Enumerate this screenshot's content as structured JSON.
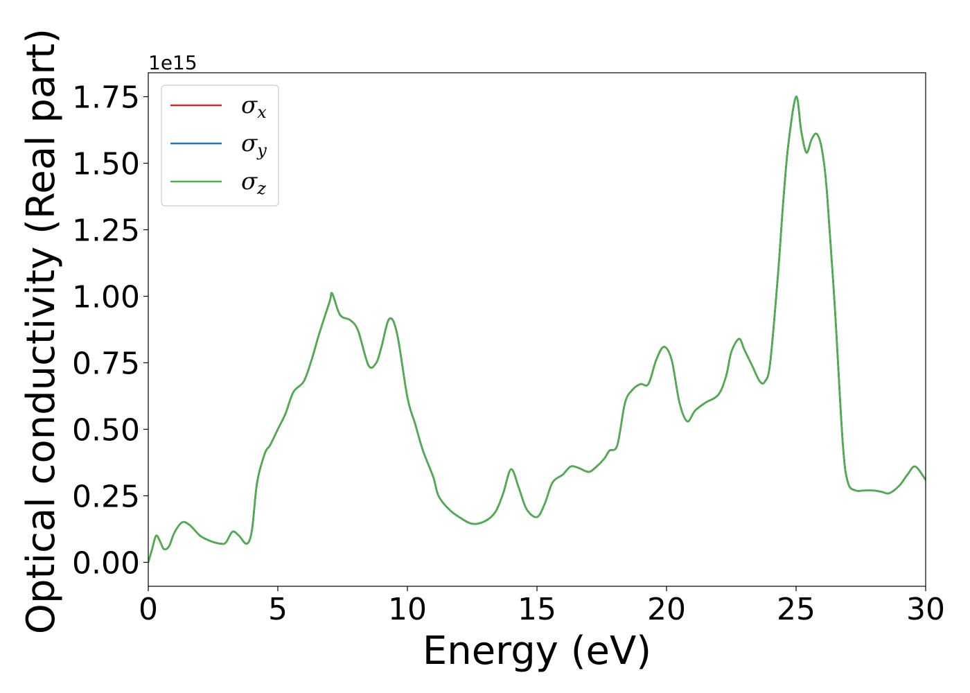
{
  "chart_data": {
    "type": "line",
    "xlabel": "Energy (eV)",
    "ylabel": "Optical conductivity (Real part)",
    "y_offset_text": "1e15",
    "xlim": [
      0,
      30
    ],
    "ylim": [
      -0.09,
      1.84
    ],
    "x_ticks": [
      0,
      5,
      10,
      15,
      20,
      25,
      30
    ],
    "x_tick_labels": [
      "0",
      "5",
      "10",
      "15",
      "20",
      "25",
      "30"
    ],
    "y_ticks": [
      0.0,
      0.25,
      0.5,
      0.75,
      1.0,
      1.25,
      1.5,
      1.75
    ],
    "y_tick_labels": [
      "0.00",
      "0.25",
      "0.50",
      "0.75",
      "1.00",
      "1.25",
      "1.50",
      "1.75"
    ],
    "grid": false,
    "legend_position": "upper-left",
    "series": [
      {
        "name": "σ",
        "subscript": "x",
        "color": "#d62728"
      },
      {
        "name": "σ",
        "subscript": "y",
        "color": "#1f77b4"
      },
      {
        "name": "σ",
        "subscript": "z",
        "color": "#4daf4a"
      }
    ],
    "x": [
      0,
      0.15,
      0.3,
      0.45,
      0.6,
      0.8,
      1.0,
      1.3,
      1.6,
      2.0,
      2.4,
      2.8,
      3.0,
      3.25,
      3.5,
      3.8,
      4.0,
      4.2,
      4.5,
      4.7,
      5.0,
      5.3,
      5.6,
      6.0,
      6.3,
      6.6,
      7.0,
      7.1,
      7.4,
      7.8,
      8.1,
      8.5,
      8.8,
      9.0,
      9.3,
      9.6,
      10.0,
      10.3,
      10.6,
      11.0,
      11.2,
      11.6,
      12.0,
      12.5,
      13.0,
      13.4,
      13.7,
      14.0,
      14.3,
      14.6,
      15.0,
      15.3,
      15.6,
      16.0,
      16.3,
      16.6,
      17.0,
      17.3,
      17.6,
      17.8,
      18.1,
      18.4,
      18.7,
      19.0,
      19.3,
      19.6,
      19.9,
      20.2,
      20.5,
      20.8,
      21.1,
      21.5,
      22.0,
      22.3,
      22.5,
      22.8,
      23.0,
      23.3,
      23.6,
      23.8,
      24.0,
      24.3,
      24.5,
      24.7,
      25.0,
      25.2,
      25.4,
      25.6,
      25.8,
      26.0,
      26.2,
      26.5,
      26.8,
      27.0,
      27.3,
      27.6,
      28.0,
      28.3,
      28.6,
      29.0,
      29.3,
      29.6,
      30.0
    ],
    "values": [
      0.0,
      0.05,
      0.1,
      0.08,
      0.05,
      0.06,
      0.11,
      0.15,
      0.14,
      0.1,
      0.08,
      0.07,
      0.075,
      0.115,
      0.1,
      0.07,
      0.12,
      0.3,
      0.41,
      0.44,
      0.5,
      0.56,
      0.64,
      0.68,
      0.76,
      0.86,
      0.98,
      1.01,
      0.93,
      0.91,
      0.87,
      0.74,
      0.75,
      0.81,
      0.915,
      0.86,
      0.62,
      0.52,
      0.42,
      0.32,
      0.25,
      0.2,
      0.17,
      0.145,
      0.155,
      0.19,
      0.26,
      0.35,
      0.28,
      0.2,
      0.17,
      0.22,
      0.3,
      0.33,
      0.36,
      0.355,
      0.34,
      0.36,
      0.39,
      0.42,
      0.44,
      0.6,
      0.65,
      0.67,
      0.67,
      0.76,
      0.81,
      0.76,
      0.6,
      0.53,
      0.57,
      0.6,
      0.63,
      0.7,
      0.79,
      0.84,
      0.8,
      0.74,
      0.68,
      0.68,
      0.75,
      1.08,
      1.35,
      1.57,
      1.75,
      1.62,
      1.54,
      1.59,
      1.61,
      1.55,
      1.38,
      0.95,
      0.45,
      0.3,
      0.27,
      0.27,
      0.27,
      0.265,
      0.26,
      0.29,
      0.33,
      0.36,
      0.31
    ]
  }
}
